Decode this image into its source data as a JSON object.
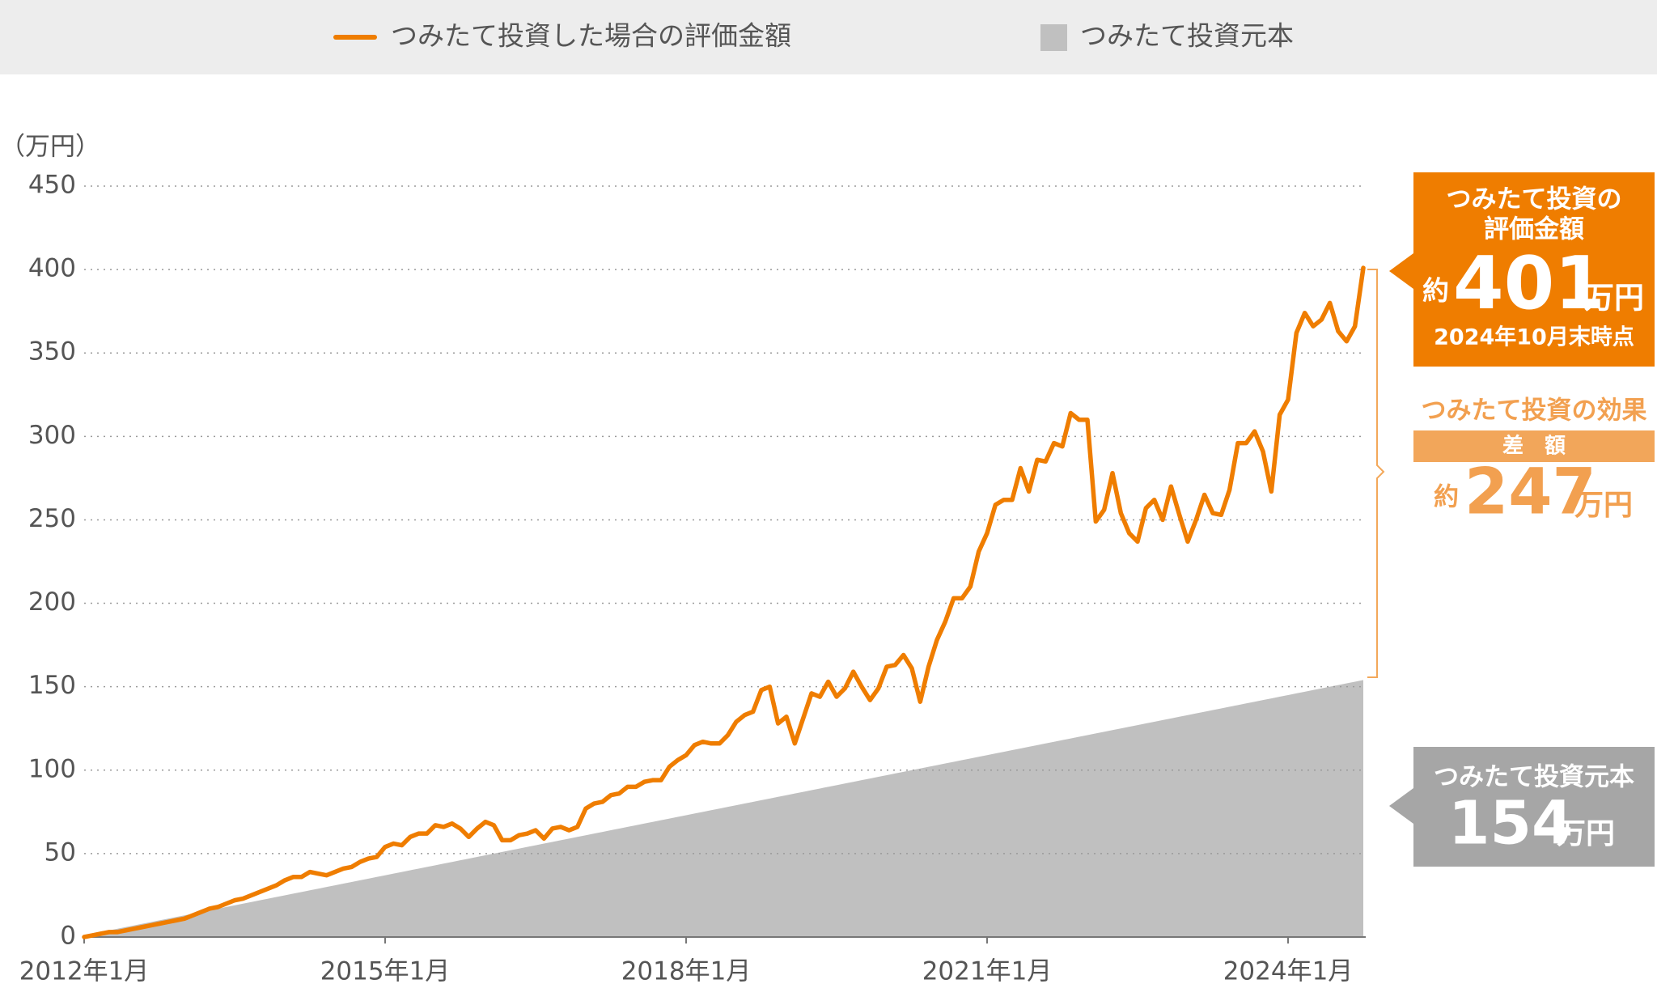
{
  "chart_data": {
    "type": "line",
    "y_label": "（万円）",
    "categories": [
      "2012年1月",
      null,
      null,
      null,
      null,
      null,
      null,
      null,
      null,
      null,
      null,
      null,
      null,
      null,
      null,
      null,
      null,
      null,
      null,
      null,
      null,
      null,
      null,
      null,
      null,
      null,
      null,
      null,
      null,
      null,
      null,
      null,
      null,
      null,
      null,
      null,
      "2015年1月",
      null,
      null,
      null,
      null,
      null,
      null,
      null,
      null,
      null,
      null,
      null,
      null,
      null,
      null,
      null,
      null,
      null,
      null,
      null,
      null,
      null,
      null,
      null,
      null,
      null,
      null,
      null,
      null,
      null,
      null,
      null,
      null,
      null,
      null,
      null,
      "2018年1月",
      null,
      null,
      null,
      null,
      null,
      null,
      null,
      null,
      null,
      null,
      null,
      null,
      null,
      null,
      null,
      null,
      null,
      null,
      null,
      null,
      null,
      null,
      null,
      null,
      null,
      null,
      null,
      null,
      null,
      null,
      null,
      null,
      null,
      null,
      null,
      "2021年1月",
      null,
      null,
      null,
      null,
      null,
      null,
      null,
      null,
      null,
      null,
      null,
      null,
      null,
      null,
      null,
      null,
      null,
      null,
      null,
      null,
      null,
      null,
      null,
      null,
      null,
      null,
      null,
      null,
      null,
      null,
      null,
      null,
      null,
      null,
      null,
      "2024年1月",
      null,
      null,
      null,
      null,
      null,
      null,
      null,
      null,
      null
    ],
    "series": [
      {
        "name": "つみたて投資した場合の評価金額",
        "color": "#ef7d00",
        "kind": "line",
        "values": [
          0,
          1,
          2,
          3,
          3,
          4,
          5,
          6,
          7,
          8,
          9,
          10,
          11,
          13,
          15,
          17,
          18,
          20,
          22,
          23,
          25,
          27,
          29,
          31,
          34,
          36,
          36,
          39,
          38,
          37,
          39,
          41,
          42,
          45,
          47,
          48,
          54,
          56,
          55,
          60,
          62,
          62,
          67,
          66,
          68,
          65,
          60,
          65,
          69,
          67,
          58,
          58,
          61,
          62,
          64,
          59,
          65,
          66,
          64,
          66,
          77,
          80,
          81,
          85,
          86,
          90,
          90,
          93,
          94,
          94,
          102,
          106,
          109,
          115,
          117,
          116,
          116,
          121,
          129,
          133,
          135,
          148,
          150,
          128,
          132,
          116,
          131,
          146,
          144,
          153,
          144,
          149,
          159,
          150,
          142,
          149,
          162,
          163,
          169,
          161,
          141,
          162,
          178,
          189,
          203,
          203,
          210,
          231,
          242,
          259,
          262,
          262,
          281,
          267,
          286,
          285,
          296,
          294,
          314,
          310,
          310,
          249,
          256,
          278,
          254,
          242,
          237,
          257,
          262,
          250,
          270,
          253,
          237,
          250,
          265,
          254,
          253,
          268,
          296,
          296,
          303,
          291,
          267,
          313,
          322,
          362,
          374,
          366,
          370,
          380,
          363,
          357,
          366,
          401
        ]
      },
      {
        "name": "つみたて投資元本",
        "color": "#c0c0c0",
        "kind": "area",
        "values": [
          1,
          2,
          3,
          4,
          5,
          6,
          7,
          8,
          9,
          10,
          11,
          12,
          13,
          14,
          15,
          16,
          17,
          18,
          19,
          20,
          21,
          22,
          23,
          24,
          25,
          26,
          27,
          28,
          29,
          30,
          31,
          32,
          33,
          34,
          35,
          36,
          37,
          38,
          39,
          40,
          41,
          42,
          43,
          44,
          45,
          46,
          47,
          48,
          49,
          50,
          51,
          52,
          53,
          54,
          55,
          56,
          57,
          58,
          59,
          60,
          61,
          62,
          63,
          64,
          65,
          66,
          67,
          68,
          69,
          70,
          71,
          72,
          73,
          74,
          75,
          76,
          77,
          78,
          79,
          80,
          81,
          82,
          83,
          84,
          85,
          86,
          87,
          88,
          89,
          90,
          91,
          92,
          93,
          94,
          95,
          96,
          97,
          98,
          99,
          100,
          101,
          102,
          103,
          104,
          105,
          106,
          107,
          108,
          109,
          110,
          111,
          112,
          113,
          114,
          115,
          116,
          117,
          118,
          119,
          120,
          121,
          122,
          123,
          124,
          125,
          126,
          127,
          128,
          129,
          130,
          131,
          132,
          133,
          134,
          135,
          136,
          137,
          138,
          139,
          140,
          141,
          142,
          143,
          144,
          145,
          146,
          147,
          148,
          149,
          150,
          151,
          152,
          153,
          154
        ]
      }
    ],
    "ylim": [
      0,
      450
    ],
    "yticks": [
      0,
      50,
      100,
      150,
      200,
      250,
      300,
      350,
      400,
      450
    ],
    "grid": true,
    "annotations": {
      "value_box": {
        "title_1": "つみたて投資の",
        "title_2": "評価金額",
        "prefix": "約",
        "number": 401,
        "unit": "万円",
        "date": "2024年10月末時点"
      },
      "effect_box": {
        "title": "つみたて投資の効果",
        "label": "差　額",
        "prefix": "約",
        "number": 247,
        "unit": "万円"
      },
      "principal_box": {
        "title": "つみたて投資元本",
        "number": 154,
        "unit": "万円"
      }
    }
  }
}
